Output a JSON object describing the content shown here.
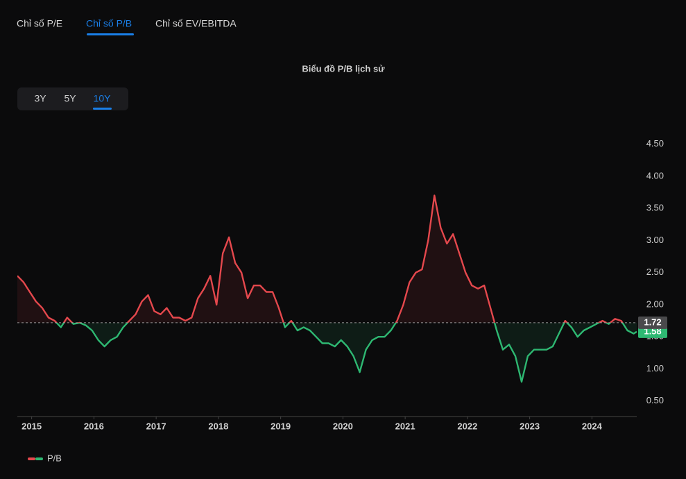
{
  "tabs": [
    "Chỉ số P/E",
    "Chỉ số P/B",
    "Chỉ số EV/EBITDA"
  ],
  "ranges": [
    "3Y",
    "5Y",
    "10Y"
  ],
  "chart_data": {
    "type": "line",
    "title": "Biểu đồ P/B lịch sử",
    "x": [
      2014.77,
      2014.87,
      2014.97,
      2015.07,
      2015.17,
      2015.27,
      2015.37,
      2015.47,
      2015.57,
      2015.67,
      2015.77,
      2015.87,
      2015.97,
      2016.07,
      2016.17,
      2016.27,
      2016.37,
      2016.47,
      2016.57,
      2016.67,
      2016.77,
      2016.87,
      2016.97,
      2017.07,
      2017.17,
      2017.27,
      2017.37,
      2017.47,
      2017.57,
      2017.67,
      2017.77,
      2017.87,
      2017.97,
      2018.07,
      2018.17,
      2018.27,
      2018.37,
      2018.47,
      2018.57,
      2018.67,
      2018.77,
      2018.87,
      2018.97,
      2019.07,
      2019.17,
      2019.27,
      2019.37,
      2019.47,
      2019.57,
      2019.67,
      2019.77,
      2019.87,
      2019.97,
      2020.07,
      2020.17,
      2020.27,
      2020.37,
      2020.47,
      2020.57,
      2020.67,
      2020.77,
      2020.87,
      2020.97,
      2021.07,
      2021.17,
      2021.27,
      2021.37,
      2021.47,
      2021.57,
      2021.67,
      2021.77,
      2021.87,
      2021.97,
      2022.07,
      2022.17,
      2022.27,
      2022.37,
      2022.47,
      2022.57,
      2022.67,
      2022.77,
      2022.87,
      2022.97,
      2023.07,
      2023.17,
      2023.27,
      2023.37,
      2023.47,
      2023.57,
      2023.67,
      2023.77,
      2023.87,
      2023.97,
      2024.07,
      2024.17,
      2024.27,
      2024.37,
      2024.47,
      2024.57,
      2024.67,
      2024.72
    ],
    "series": [
      {
        "name": "P/B",
        "colors": {
          "above": "#e5484d",
          "below": "#2eb872"
        },
        "values": [
          2.45,
          2.35,
          2.2,
          2.05,
          1.95,
          1.8,
          1.75,
          1.65,
          1.8,
          1.7,
          1.72,
          1.68,
          1.6,
          1.45,
          1.35,
          1.45,
          1.5,
          1.65,
          1.75,
          1.85,
          2.05,
          2.15,
          1.9,
          1.85,
          1.95,
          1.8,
          1.8,
          1.75,
          1.8,
          2.1,
          2.25,
          2.45,
          2.0,
          2.8,
          3.05,
          2.65,
          2.5,
          2.1,
          2.3,
          2.3,
          2.2,
          2.2,
          1.95,
          1.65,
          1.75,
          1.6,
          1.65,
          1.6,
          1.5,
          1.4,
          1.4,
          1.35,
          1.45,
          1.35,
          1.2,
          0.95,
          1.3,
          1.45,
          1.5,
          1.5,
          1.6,
          1.75,
          2.0,
          2.35,
          2.5,
          2.55,
          3.0,
          3.7,
          3.2,
          2.95,
          3.1,
          2.8,
          2.5,
          2.3,
          2.25,
          2.3,
          1.95,
          1.6,
          1.3,
          1.38,
          1.2,
          0.8,
          1.2,
          1.3,
          1.3,
          1.3,
          1.35,
          1.55,
          1.75,
          1.65,
          1.5,
          1.6,
          1.65,
          1.7,
          1.75,
          1.7,
          1.78,
          1.75,
          1.6,
          1.55,
          1.58
        ]
      }
    ],
    "reference": 1.72,
    "xlim": [
      2014.77,
      2024.72
    ],
    "xticks": [
      2015,
      2016,
      2017,
      2018,
      2019,
      2020,
      2021,
      2022,
      2023,
      2024
    ],
    "ylim": [
      0.26,
      4.69
    ],
    "yticks": [
      {
        "value": 0.5,
        "label": "0.50"
      },
      {
        "value": 1,
        "label": "1.00"
      },
      {
        "value": 1.5,
        "label": "1.50"
      },
      {
        "value": 2,
        "label": "2.00"
      },
      {
        "value": 2.5,
        "label": "2.50"
      },
      {
        "value": 3,
        "label": "3.00"
      },
      {
        "value": 3.5,
        "label": "3.50"
      },
      {
        "value": 4,
        "label": "4.00"
      },
      {
        "value": 4.5,
        "label": "4.50"
      }
    ]
  }
}
